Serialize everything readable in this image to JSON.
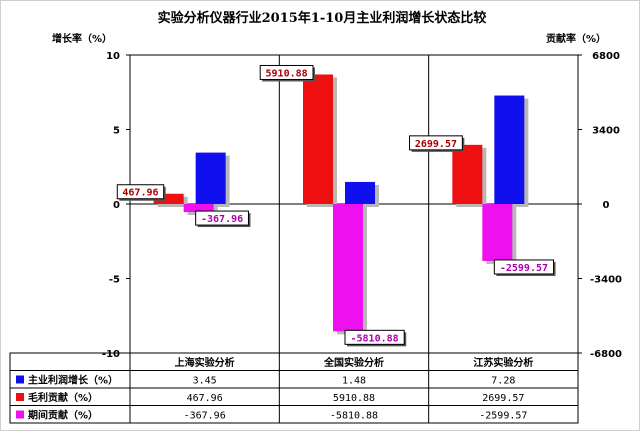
{
  "chart_data": {
    "type": "bar",
    "title": "实验分析仪器行业2015年1-10月主业利润增长状态比较",
    "ylabel_left": "增长率（%）",
    "ylabel_right": "贡献率（%）",
    "categories": [
      "上海实验分析",
      "全国实验分析",
      "江苏实验分析"
    ],
    "y_left": {
      "min": -10,
      "max": 10,
      "ticks": [
        10,
        5,
        0,
        -5,
        -10
      ]
    },
    "y_right": {
      "min": -6800,
      "max": 6800,
      "ticks": [
        "6800",
        "3400",
        "0",
        "-3400",
        "-6800"
      ]
    },
    "series": [
      {
        "name": "主业利润增长（%）",
        "axis": "left",
        "color": "#1010ee",
        "values": [
          3.45,
          1.48,
          7.28
        ],
        "display": [
          "3.45",
          "1.48",
          "7.28"
        ]
      },
      {
        "name": "毛利贡献（%）",
        "axis": "right",
        "color": "#ee1010",
        "values": [
          467.96,
          5910.88,
          2699.57
        ],
        "display": [
          "467.96",
          "5910.88",
          "2699.57"
        ]
      },
      {
        "name": "期间贡献（%）",
        "axis": "right",
        "color": "#ee10ee",
        "values": [
          -367.96,
          -5810.88,
          -2599.57
        ],
        "display": [
          "-367.96",
          "-5810.88",
          "-2599.57"
        ]
      }
    ],
    "data_labels": [
      {
        "series": 1,
        "index": 0,
        "text": "467.96",
        "color": "#aa0000"
      },
      {
        "series": 2,
        "index": 0,
        "text": "-367.96",
        "color": "#aa00aa"
      },
      {
        "series": 1,
        "index": 1,
        "text": "5910.88",
        "color": "#aa0000"
      },
      {
        "series": 2,
        "index": 1,
        "text": "-5810.88",
        "color": "#aa00aa"
      },
      {
        "series": 1,
        "index": 2,
        "text": "2699.57",
        "color": "#aa0000"
      },
      {
        "series": 2,
        "index": 2,
        "text": "-2599.57",
        "color": "#aa00aa"
      }
    ],
    "grid": "vertical",
    "legend": "table-below"
  }
}
